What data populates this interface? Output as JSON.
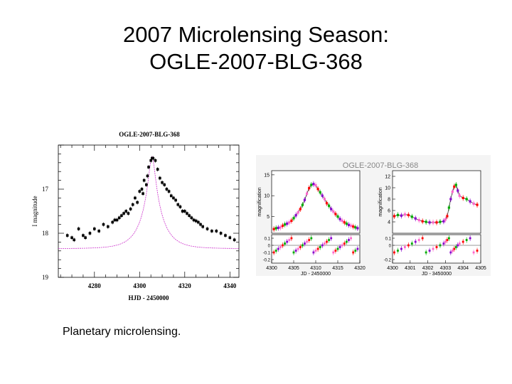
{
  "slide": {
    "title_line1": "2007 Microlensing Season:",
    "title_line2": "OGLE-2007-BLG-368",
    "caption": "Planetary microlensing."
  },
  "colors": {
    "data_points": "#000000",
    "model_curve": "#cc33cc",
    "ogle": "#ff0000",
    "moa": "#00aa00",
    "other": "#8800cc",
    "model_dark": "#333333"
  },
  "chart_data": [
    {
      "type": "scatter",
      "title": "OGLE-2007-BLG-368",
      "xlabel": "HJD - 2450000",
      "ylabel": "I magnitude",
      "xlim": [
        4264,
        4344
      ],
      "ylim": [
        19.0,
        16.0
      ],
      "y_inverted": true,
      "xticks": [
        4280,
        4300,
        4320,
        4340
      ],
      "yticks": [
        17,
        18,
        19
      ],
      "model": {
        "t0": 4305.5,
        "peak_mag": 16.25,
        "baseline_mag": 18.35,
        "tE": 8.5
      },
      "x": [
        4268,
        4270,
        4271,
        4273,
        4275,
        4276,
        4278,
        4280,
        4282,
        4284,
        4286,
        4288,
        4289,
        4290,
        4291,
        4292,
        4293,
        4294,
        4295,
        4296,
        4297,
        4298,
        4299,
        4300,
        4301,
        4301.5,
        4302,
        4303,
        4303.5,
        4304,
        4305,
        4305.5,
        4306,
        4307,
        4308,
        4309,
        4310,
        4311,
        4312,
        4313,
        4314,
        4315,
        4316,
        4317,
        4318,
        4319,
        4320,
        4321,
        4322,
        4323,
        4324,
        4325,
        4326,
        4327,
        4328,
        4330,
        4332,
        4334,
        4336,
        4338,
        4340,
        4342
      ],
      "y": [
        18.05,
        18.1,
        18.15,
        17.9,
        18.05,
        18.1,
        18.0,
        17.9,
        17.95,
        17.8,
        17.85,
        17.75,
        17.7,
        17.7,
        17.65,
        17.6,
        17.55,
        17.5,
        17.55,
        17.45,
        17.35,
        17.2,
        17.3,
        17.05,
        17.0,
        17.1,
        16.8,
        16.9,
        16.7,
        16.5,
        16.35,
        16.3,
        16.3,
        16.35,
        16.55,
        16.75,
        16.85,
        16.9,
        17.0,
        17.05,
        17.15,
        17.2,
        17.25,
        17.35,
        17.4,
        17.5,
        17.5,
        17.55,
        17.6,
        17.65,
        17.7,
        17.72,
        17.75,
        17.8,
        17.85,
        17.9,
        17.95,
        17.95,
        18.0,
        18.05,
        18.1,
        18.15
      ]
    },
    {
      "type": "scatter",
      "title": "OGLE-2007-BLG-368",
      "panels": [
        {
          "xlabel": "JD - 2450000",
          "ylabel": "magnification",
          "xlim": [
            4300,
            4320
          ],
          "xticks": [
            4300,
            4305,
            4310,
            4315,
            4320
          ],
          "ylim": [
            1,
            16
          ],
          "yticks": [
            5,
            10,
            15
          ],
          "x": [
            4300.5,
            4301,
            4301.5,
            4302,
            4302.5,
            4303,
            4303.5,
            4304,
            4304.5,
            4305,
            4305.5,
            4306,
            4306.5,
            4307,
            4307.5,
            4308,
            4308.5,
            4309,
            4309.5,
            4310,
            4310.5,
            4311,
            4311.5,
            4312,
            4312.5,
            4313,
            4313.5,
            4314,
            4314.5,
            4315,
            4315.5,
            4316,
            4316.5,
            4317,
            4317.5,
            4318,
            4318.5,
            4319,
            4319.5
          ],
          "y": [
            2.0,
            2.2,
            2.3,
            2.4,
            2.8,
            3.1,
            3.3,
            3.6,
            4.0,
            4.6,
            5.3,
            6.0,
            6.8,
            7.8,
            9.0,
            10.5,
            11.8,
            12.6,
            12.8,
            12.5,
            11.6,
            10.8,
            10.0,
            9.2,
            8.2,
            7.6,
            6.8,
            6.2,
            5.6,
            5.0,
            4.4,
            4.0,
            3.6,
            3.3,
            3.0,
            2.8,
            2.6,
            2.4,
            2.2
          ],
          "residual_ylabel": "",
          "residual_yticks": [
            0.1,
            0.0,
            -0.1,
            -0.2
          ]
        },
        {
          "xlabel": "JD - 3450000",
          "ylabel": "magnification",
          "xlim": [
            4300,
            4305
          ],
          "xticks": [
            4300,
            4301,
            4302,
            4303,
            4304,
            4305
          ],
          "ylim": [
            2,
            13
          ],
          "yticks": [
            4,
            6,
            8,
            10,
            12
          ],
          "x": [
            4300.1,
            4300.3,
            4300.5,
            4300.7,
            4300.9,
            4301.1,
            4301.3,
            4301.5,
            4301.7,
            4301.9,
            4302.1,
            4302.3,
            4302.5,
            4302.7,
            4302.9,
            4303.0,
            4303.1,
            4303.2,
            4303.3,
            4303.4,
            4303.5,
            4303.6,
            4303.7,
            4303.8,
            4304.0,
            4304.2,
            4304.4,
            4304.6,
            4304.8
          ],
          "y": [
            5.0,
            5.2,
            5.1,
            5.3,
            5.2,
            4.9,
            4.6,
            4.3,
            4.1,
            4.0,
            3.9,
            3.9,
            3.9,
            4.0,
            4.1,
            4.4,
            5.0,
            6.5,
            8.0,
            9.3,
            10.2,
            10.5,
            9.5,
            8.6,
            8.2,
            8.0,
            7.6,
            7.2,
            7.0
          ],
          "residual_ylabel": "",
          "residual_yticks": [
            0.1,
            0.0,
            -0.2
          ]
        }
      ]
    }
  ]
}
